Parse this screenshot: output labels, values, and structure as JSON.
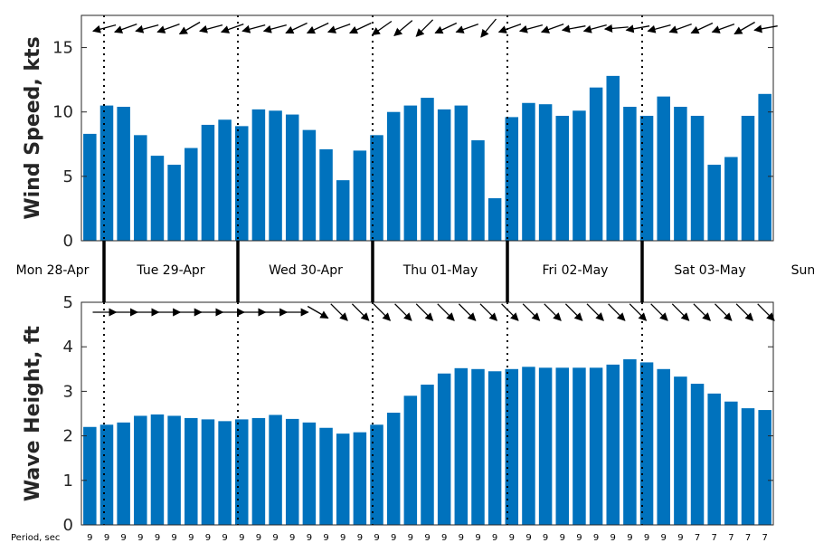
{
  "chart_data": [
    {
      "type": "bar",
      "ylabel": "Wind Speed, kts",
      "ylim": [
        0,
        17.5
      ],
      "yticks": [
        0,
        5,
        10,
        15
      ],
      "values": [
        8.3,
        10.5,
        10.4,
        8.2,
        6.6,
        5.9,
        7.2,
        9.0,
        9.4,
        8.9,
        10.2,
        10.1,
        9.8,
        8.6,
        7.1,
        4.7,
        7.0,
        8.2,
        10.0,
        10.5,
        11.1,
        10.2,
        10.5,
        7.8,
        3.3,
        9.6,
        10.7,
        10.6,
        9.7,
        10.1,
        11.9,
        12.8,
        10.4,
        9.7,
        11.2,
        10.4,
        9.7,
        5.9,
        6.5,
        9.7,
        11.4
      ],
      "direction_arrows_deg": [
        195,
        200,
        195,
        200,
        210,
        195,
        200,
        195,
        195,
        205,
        205,
        200,
        205,
        215,
        220,
        225,
        205,
        200,
        230,
        200,
        195,
        200,
        190,
        195,
        185,
        190,
        195,
        200,
        205,
        200,
        210,
        190
      ],
      "bar_color": "#0072bd"
    },
    {
      "type": "bar",
      "ylabel": "Wave Height, ft",
      "ylim": [
        0,
        5
      ],
      "yticks": [
        0,
        1,
        2,
        3,
        4,
        5
      ],
      "values": [
        2.2,
        2.25,
        2.3,
        2.45,
        2.48,
        2.45,
        2.4,
        2.37,
        2.33,
        2.37,
        2.4,
        2.47,
        2.38,
        2.3,
        2.18,
        2.05,
        2.08,
        2.25,
        2.52,
        2.9,
        3.15,
        3.4,
        3.52,
        3.5,
        3.45,
        3.5,
        3.55,
        3.53,
        3.53,
        3.53,
        3.53,
        3.6,
        3.72,
        3.65,
        3.5,
        3.33,
        3.17,
        2.95,
        2.77,
        2.62,
        2.58
      ],
      "direction_arrows_deg": [
        0,
        0,
        0,
        0,
        0,
        0,
        0,
        0,
        0,
        0,
        330,
        315,
        315,
        315,
        315,
        315,
        315,
        315,
        315,
        315,
        315,
        315,
        315,
        315,
        315,
        315,
        315,
        315,
        315,
        315,
        315,
        315
      ],
      "bar_color": "#0072bd"
    }
  ],
  "days": [
    "Mon 28-Apr",
    "Tue 29-Apr",
    "Wed 30-Apr",
    "Thu 01-May",
    "Fri 02-May",
    "Sat 03-May",
    "Sun"
  ],
  "period": {
    "label": "Period, sec",
    "values": [
      "9",
      "9",
      "9",
      "9",
      "9",
      "9",
      "9",
      "9",
      "9",
      "9",
      "9",
      "9",
      "9",
      "9",
      "9",
      "9",
      "9",
      "9",
      "9",
      "9",
      "9",
      "9",
      "9",
      "9",
      "9",
      "9",
      "9",
      "9",
      "9",
      "9",
      "9",
      "9",
      "9",
      "9",
      "9",
      "9",
      "7",
      "7",
      "7",
      "7",
      "7"
    ]
  }
}
